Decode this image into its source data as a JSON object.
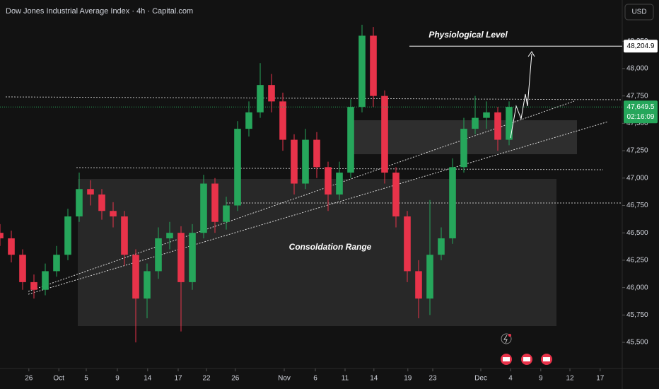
{
  "chart_data": {
    "type": "candlestick",
    "title": "Dow Jones Industrial Average Index · 4h · Capital.com",
    "currency": "USD",
    "colors": {
      "up": "#26a65b",
      "down": "#e8334a"
    },
    "x": [
      0,
      2,
      4,
      6,
      8,
      10,
      12,
      14,
      16,
      18,
      20,
      22,
      24,
      26,
      28,
      30,
      32,
      34,
      36,
      38,
      40,
      42,
      44,
      46,
      48,
      50,
      52,
      54,
      56,
      58,
      60,
      62,
      64,
      66,
      68,
      70,
      72,
      74,
      76,
      78,
      80,
      82,
      84,
      86,
      88,
      90
    ],
    "open": [
      46500,
      46450,
      46300,
      46050,
      45980,
      46150,
      46300,
      46650,
      46900,
      46850,
      46700,
      46650,
      46300,
      45900,
      46150,
      46450,
      46500,
      46050,
      46500,
      46950,
      46600,
      46750,
      47450,
      47600,
      47850,
      47700,
      47350,
      46950,
      47350,
      47100,
      46850,
      47050,
      47650,
      48300,
      47750,
      47050,
      46650,
      46150,
      45900,
      46300,
      46450,
      47100,
      47450,
      47550,
      47600,
      47350
    ],
    "high": [
      46580,
      46520,
      46350,
      46120,
      46220,
      46380,
      46720,
      47050,
      46980,
      46900,
      46780,
      46700,
      46350,
      46220,
      46550,
      46600,
      46560,
      46580,
      47030,
      47000,
      46830,
      47520,
      47700,
      48050,
      47950,
      47780,
      47400,
      47450,
      47420,
      47150,
      47150,
      47720,
      48400,
      48380,
      47800,
      47100,
      46700,
      46250,
      46800,
      46550,
      47180,
      47550,
      47750,
      47700,
      47650,
      47700
    ],
    "low": [
      46380,
      46230,
      45980,
      45900,
      45930,
      46100,
      46250,
      46600,
      46750,
      46620,
      46550,
      46200,
      45500,
      45720,
      46080,
      46350,
      45600,
      45980,
      46450,
      46500,
      46530,
      46700,
      47380,
      47550,
      47600,
      47250,
      46850,
      46900,
      47000,
      46700,
      46800,
      47000,
      47600,
      47650,
      46950,
      46550,
      46050,
      45720,
      45750,
      46250,
      46400,
      47050,
      47400,
      47450,
      47250,
      47300
    ],
    "close": [
      46450,
      46300,
      46050,
      45980,
      46150,
      46300,
      46650,
      46900,
      46850,
      46700,
      46650,
      46300,
      45900,
      46150,
      46450,
      46500,
      46050,
      46500,
      46950,
      46600,
      46750,
      47450,
      47600,
      47850,
      47700,
      47350,
      46950,
      47350,
      47100,
      46850,
      47050,
      47650,
      48300,
      47750,
      47050,
      46650,
      46150,
      45900,
      46300,
      46450,
      47100,
      47450,
      47550,
      47600,
      47350,
      47650
    ],
    "xlim": [
      0,
      110
    ],
    "ylim": [
      45268,
      48626
    ],
    "yticks": [
      {
        "value": 45500,
        "label": "45,500"
      },
      {
        "value": 45750,
        "label": "45,750"
      },
      {
        "value": 46000,
        "label": "46,000"
      },
      {
        "value": 46250,
        "label": "46,250"
      },
      {
        "value": 46500,
        "label": "46,500"
      },
      {
        "value": 46750,
        "label": "46,750"
      },
      {
        "value": 47000,
        "label": "47,000"
      },
      {
        "value": 47250,
        "label": "47,250"
      },
      {
        "value": 47500,
        "label": "47,500"
      },
      {
        "value": 47750,
        "label": "47,750"
      },
      {
        "value": 48000,
        "label": "48,000"
      },
      {
        "value": 48250,
        "label": "48,250"
      }
    ],
    "xticks": [
      {
        "value": 5.1,
        "label": "26"
      },
      {
        "value": 10.4,
        "label": "Oct"
      },
      {
        "value": 15.25,
        "label": "5"
      },
      {
        "value": 20.75,
        "label": "9"
      },
      {
        "value": 26.1,
        "label": "14"
      },
      {
        "value": 31.5,
        "label": "17"
      },
      {
        "value": 36.5,
        "label": "22"
      },
      {
        "value": 41.6,
        "label": "26"
      },
      {
        "value": 50.25,
        "label": "Nov"
      },
      {
        "value": 55.75,
        "label": "6"
      },
      {
        "value": 61,
        "label": "11"
      },
      {
        "value": 66.1,
        "label": "14"
      },
      {
        "value": 72.1,
        "label": "19"
      },
      {
        "value": 76.5,
        "label": "23"
      },
      {
        "value": 85,
        "label": "Dec"
      },
      {
        "value": 90.25,
        "label": "4"
      },
      {
        "value": 95.6,
        "label": "9"
      },
      {
        "value": 100.75,
        "label": "12"
      },
      {
        "value": 106.1,
        "label": "17"
      }
    ],
    "target_level": {
      "value": 48204.9,
      "label": "48,204.9"
    },
    "last_price": {
      "value": 47649.5,
      "label": "47,649.5"
    },
    "countdown": "02:16:09",
    "annotations": [
      "Physiological Level",
      "Consoldation Range"
    ]
  }
}
